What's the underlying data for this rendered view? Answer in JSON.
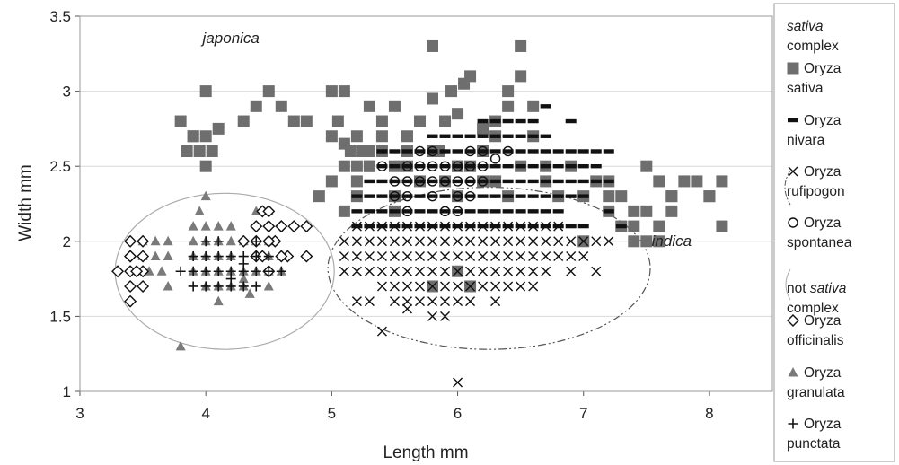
{
  "chart_data": {
    "type": "scatter",
    "xlabel": "Length mm",
    "ylabel": "Width mm",
    "xlim": [
      3,
      8.5
    ],
    "ylim": [
      1,
      3.5
    ],
    "x_ticks": [
      "3",
      "4",
      "5",
      "6",
      "7",
      "8"
    ],
    "y_ticks": [
      "1",
      "1.5",
      "2",
      "2.5",
      "3",
      "3.5"
    ],
    "grid": "horizontal",
    "legend": "right",
    "annotations": [
      {
        "text": "japonica",
        "x": 4.2,
        "y": 3.32
      },
      {
        "text": "indica",
        "x": 7.7,
        "y": 1.97
      }
    ],
    "legend_groups": [
      {
        "title_italic": "sativa",
        "title_rest": "complex",
        "ellipse_style": "dash-dot"
      },
      {
        "title_pre": "not ",
        "title_italic": "sativa",
        "title_rest": "complex",
        "ellipse_style": "solid"
      }
    ],
    "ellipses": [
      {
        "group": "sativa complex",
        "cx": 6.25,
        "cy": 1.82,
        "rx": 1.28,
        "ry": 0.54,
        "style": "dash-dot"
      },
      {
        "group": "not sativa complex",
        "cx": 4.15,
        "cy": 1.8,
        "rx": 0.87,
        "ry": 0.52,
        "style": "solid"
      }
    ],
    "series": [
      {
        "name": "Oryza sativa",
        "marker": "square",
        "color": "#6e6e6e",
        "x": [
          3.8,
          3.85,
          3.9,
          3.95,
          4.0,
          4.0,
          4.05,
          3.9,
          4.0,
          4.1,
          4.3,
          4.4,
          4.5,
          4.6,
          4.7,
          4.8,
          5.0,
          5.0,
          5.05,
          5.1,
          5.15,
          5.2,
          5.25,
          5.3,
          5.1,
          5.2,
          5.3,
          5.4,
          5.5,
          5.5,
          5.6,
          5.7,
          5.8,
          5.8,
          5.85,
          5.9,
          5.95,
          6.0,
          6.0,
          6.05,
          6.1,
          6.2,
          6.3,
          6.4,
          6.5,
          6.5,
          6.6,
          6.6,
          6.7,
          5.9,
          6.0,
          6.1,
          6.2,
          6.3,
          6.4,
          5.1,
          5.2,
          5.3,
          5.4,
          5.5,
          5.6,
          5.7,
          5.8,
          6.0,
          6.2,
          6.5,
          6.7,
          6.8,
          6.9,
          7.0,
          7.1,
          7.2,
          7.2,
          7.3,
          7.4,
          7.5,
          7.6,
          7.7,
          7.8,
          7.9,
          8.0,
          8.1,
          7.5,
          7.6,
          7.7,
          7.3,
          7.4,
          7.5,
          7.6,
          7.7,
          7.0,
          7.2,
          7.4,
          8.0,
          8.1,
          6.0,
          6.1,
          5.8,
          5.0,
          5.1,
          5.6,
          4.9,
          5.3,
          5.4,
          6.3,
          6.4,
          5.5,
          5.2
        ],
        "y": [
          2.8,
          2.6,
          2.7,
          2.6,
          2.5,
          3.0,
          2.6,
          2.7,
          2.7,
          2.75,
          2.8,
          2.9,
          3.0,
          2.9,
          2.8,
          2.8,
          2.7,
          3.0,
          2.8,
          2.65,
          2.6,
          2.5,
          2.6,
          2.9,
          3.0,
          2.7,
          2.5,
          2.8,
          2.9,
          2.5,
          2.6,
          2.8,
          3.3,
          2.95,
          2.6,
          2.8,
          3.0,
          2.85,
          2.5,
          3.05,
          3.1,
          2.75,
          2.7,
          3.0,
          3.3,
          3.1,
          2.9,
          2.7,
          2.5,
          2.4,
          2.3,
          2.5,
          2.6,
          2.4,
          2.3,
          2.5,
          2.4,
          2.5,
          2.6,
          2.3,
          2.5,
          2.4,
          2.6,
          2.5,
          2.4,
          2.5,
          2.4,
          2.3,
          2.5,
          2.3,
          2.4,
          2.2,
          2.3,
          2.1,
          2.0,
          2.0,
          2.0,
          2.3,
          2.4,
          2.4,
          2.3,
          2.4,
          2.5,
          2.4,
          2.3,
          2.3,
          2.2,
          2.2,
          2.1,
          2.2,
          2.0,
          2.4,
          2.1,
          2.3,
          2.1,
          1.8,
          1.7,
          1.7,
          2.4,
          2.2,
          2.7,
          2.3,
          2.6,
          2.7,
          2.8,
          2.9,
          2.2,
          2.3
        ]
      },
      {
        "name": "Oryza nivara",
        "marker": "dash",
        "color": "#111111",
        "x": [
          5.4,
          5.5,
          5.6,
          5.7,
          5.8,
          5.9,
          6.0,
          6.1,
          6.2,
          6.3,
          6.4,
          6.5,
          6.6,
          6.7,
          6.8,
          6.9,
          7.0,
          7.1,
          7.2,
          5.4,
          5.5,
          5.6,
          5.7,
          5.8,
          5.9,
          6.0,
          6.1,
          6.2,
          6.3,
          6.4,
          6.5,
          6.6,
          6.7,
          6.8,
          6.9,
          7.0,
          7.1,
          5.3,
          5.4,
          5.5,
          5.6,
          5.7,
          5.8,
          5.9,
          6.0,
          6.1,
          6.2,
          6.3,
          6.4,
          6.5,
          6.6,
          6.7,
          6.8,
          6.9,
          7.0,
          7.1,
          7.2,
          5.2,
          5.3,
          5.4,
          5.5,
          5.6,
          5.7,
          5.8,
          5.9,
          6.0,
          6.1,
          6.2,
          6.3,
          6.4,
          6.5,
          6.6,
          6.7,
          6.8,
          6.9,
          7.0,
          5.2,
          5.3,
          5.4,
          5.5,
          5.6,
          5.7,
          5.8,
          5.9,
          6.0,
          6.1,
          6.2,
          6.3,
          6.4,
          6.5,
          6.6,
          6.7,
          6.8,
          5.2,
          5.3,
          5.4,
          5.5,
          5.6,
          5.7,
          5.8,
          5.9,
          6.0,
          6.1,
          6.2,
          6.3,
          6.4,
          6.5,
          6.6,
          6.7,
          6.8,
          6.9,
          7.0,
          5.8,
          5.9,
          6.0,
          6.1,
          6.2,
          6.3,
          6.4,
          6.5,
          6.6,
          6.7,
          6.2,
          6.3,
          6.4,
          6.5,
          6.6,
          6.9,
          7.2,
          7.3,
          6.7
        ],
        "y": [
          2.6,
          2.6,
          2.6,
          2.6,
          2.6,
          2.6,
          2.6,
          2.6,
          2.6,
          2.6,
          2.6,
          2.6,
          2.6,
          2.6,
          2.6,
          2.6,
          2.6,
          2.6,
          2.6,
          2.5,
          2.5,
          2.5,
          2.5,
          2.5,
          2.5,
          2.5,
          2.5,
          2.5,
          2.5,
          2.5,
          2.5,
          2.5,
          2.5,
          2.5,
          2.5,
          2.5,
          2.5,
          2.4,
          2.4,
          2.4,
          2.4,
          2.4,
          2.4,
          2.4,
          2.4,
          2.4,
          2.4,
          2.4,
          2.4,
          2.4,
          2.4,
          2.4,
          2.4,
          2.4,
          2.4,
          2.4,
          2.4,
          2.3,
          2.3,
          2.3,
          2.3,
          2.3,
          2.3,
          2.3,
          2.3,
          2.3,
          2.3,
          2.3,
          2.3,
          2.3,
          2.3,
          2.3,
          2.3,
          2.3,
          2.3,
          2.3,
          2.2,
          2.2,
          2.2,
          2.2,
          2.2,
          2.2,
          2.2,
          2.2,
          2.2,
          2.2,
          2.2,
          2.2,
          2.2,
          2.2,
          2.2,
          2.2,
          2.2,
          2.1,
          2.1,
          2.1,
          2.1,
          2.1,
          2.1,
          2.1,
          2.1,
          2.1,
          2.1,
          2.1,
          2.1,
          2.1,
          2.1,
          2.1,
          2.1,
          2.1,
          2.1,
          2.1,
          2.7,
          2.7,
          2.7,
          2.7,
          2.7,
          2.7,
          2.7,
          2.7,
          2.7,
          2.7,
          2.8,
          2.8,
          2.8,
          2.8,
          2.8,
          2.8,
          2.2,
          2.1,
          2.9
        ]
      },
      {
        "name": "Oryza rufipogon",
        "marker": "x",
        "color": "#111111",
        "x": [
          5.2,
          5.3,
          5.4,
          5.5,
          5.6,
          5.7,
          5.8,
          5.9,
          6.0,
          6.1,
          6.2,
          6.3,
          6.4,
          6.5,
          6.6,
          6.7,
          6.8,
          5.1,
          5.2,
          5.3,
          5.4,
          5.5,
          5.6,
          5.7,
          5.8,
          5.9,
          6.0,
          6.1,
          6.2,
          6.3,
          6.4,
          6.5,
          6.6,
          6.7,
          6.8,
          6.9,
          7.0,
          7.1,
          7.2,
          5.1,
          5.2,
          5.3,
          5.4,
          5.5,
          5.6,
          5.7,
          5.8,
          5.9,
          6.0,
          6.1,
          6.2,
          6.3,
          6.4,
          6.5,
          6.6,
          6.7,
          6.8,
          6.9,
          7.0,
          5.1,
          5.2,
          5.3,
          5.4,
          5.5,
          5.6,
          5.7,
          5.8,
          5.9,
          6.0,
          6.1,
          6.2,
          6.3,
          6.4,
          6.5,
          6.6,
          6.7,
          6.9,
          7.1,
          5.4,
          5.5,
          5.6,
          5.7,
          5.8,
          5.9,
          6.0,
          6.1,
          6.2,
          6.3,
          6.4,
          6.5,
          6.6,
          5.2,
          5.3,
          5.5,
          5.6,
          5.7,
          5.8,
          5.9,
          6.0,
          6.1,
          6.3,
          5.6,
          5.8,
          5.9,
          5.4,
          6.0
        ],
        "y": [
          2.1,
          2.1,
          2.1,
          2.1,
          2.1,
          2.1,
          2.1,
          2.1,
          2.1,
          2.1,
          2.1,
          2.1,
          2.1,
          2.1,
          2.1,
          2.1,
          2.1,
          2.0,
          2.0,
          2.0,
          2.0,
          2.0,
          2.0,
          2.0,
          2.0,
          2.0,
          2.0,
          2.0,
          2.0,
          2.0,
          2.0,
          2.0,
          2.0,
          2.0,
          2.0,
          2.0,
          2.0,
          2.0,
          2.0,
          1.9,
          1.9,
          1.9,
          1.9,
          1.9,
          1.9,
          1.9,
          1.9,
          1.9,
          1.9,
          1.9,
          1.9,
          1.9,
          1.9,
          1.9,
          1.9,
          1.9,
          1.9,
          1.9,
          1.9,
          1.8,
          1.8,
          1.8,
          1.8,
          1.8,
          1.8,
          1.8,
          1.8,
          1.8,
          1.8,
          1.8,
          1.8,
          1.8,
          1.8,
          1.8,
          1.8,
          1.8,
          1.8,
          1.8,
          1.7,
          1.7,
          1.7,
          1.7,
          1.7,
          1.7,
          1.7,
          1.7,
          1.7,
          1.7,
          1.7,
          1.7,
          1.7,
          1.6,
          1.6,
          1.6,
          1.6,
          1.6,
          1.6,
          1.6,
          1.6,
          1.6,
          1.6,
          1.55,
          1.5,
          1.5,
          1.4,
          1.06
        ]
      },
      {
        "name": "Oryza spontanea",
        "marker": "circle",
        "color": "#111111",
        "x": [
          5.4,
          5.6,
          5.7,
          5.8,
          5.9,
          6.0,
          6.1,
          6.2,
          6.3,
          6.4,
          5.5,
          5.6,
          5.7,
          5.8,
          5.9,
          6.0,
          6.1,
          6.2,
          5.5,
          5.6,
          5.8,
          6.0,
          6.1,
          5.6,
          5.9,
          6.0,
          5.7,
          5.8,
          6.1,
          6.2
        ],
        "y": [
          2.5,
          2.5,
          2.5,
          2.5,
          2.5,
          2.5,
          2.5,
          2.5,
          2.55,
          2.6,
          2.4,
          2.4,
          2.4,
          2.4,
          2.4,
          2.4,
          2.4,
          2.4,
          2.3,
          2.3,
          2.3,
          2.3,
          2.3,
          2.2,
          2.2,
          2.2,
          2.6,
          2.6,
          2.6,
          2.6
        ]
      },
      {
        "name": "Oryza officinalis",
        "marker": "diamond",
        "color": "#111111",
        "x": [
          3.3,
          3.4,
          3.4,
          3.5,
          3.5,
          3.4,
          3.4,
          3.5,
          3.4,
          3.5,
          3.45,
          3.4,
          4.4,
          4.5,
          4.55,
          4.6,
          4.4,
          4.5,
          4.3,
          4.4,
          4.45,
          4.5,
          4.6,
          4.7,
          4.8,
          4.45,
          4.5,
          4.65,
          4.6,
          4.8
        ],
        "y": [
          1.8,
          2.0,
          1.9,
          1.9,
          1.8,
          1.8,
          1.7,
          1.7,
          1.6,
          2.0,
          1.8,
          1.9,
          2.1,
          2.1,
          2.0,
          2.1,
          2.0,
          2.0,
          2.0,
          1.9,
          2.2,
          2.2,
          2.1,
          2.1,
          2.1,
          1.9,
          1.8,
          1.9,
          1.9,
          1.9
        ]
      },
      {
        "name": "Oryza granulata",
        "marker": "triangle",
        "color": "#7a7a7a",
        "x": [
          3.5,
          3.6,
          3.7,
          3.5,
          3.6,
          3.7,
          3.55,
          3.65,
          3.7,
          3.9,
          4.0,
          4.1,
          4.2,
          4.3,
          4.4,
          4.5,
          3.9,
          4.0,
          4.1,
          4.2,
          3.9,
          4.0,
          4.1,
          4.2,
          4.3,
          4.4,
          4.0,
          4.1,
          3.9,
          4.0,
          4.1,
          4.2,
          4.4,
          4.5,
          4.5,
          4.3,
          4.0,
          3.95,
          4.1,
          4.2,
          4.3,
          4.35,
          4.5,
          4.6,
          4.5,
          4.6,
          3.8
        ],
        "y": [
          2.0,
          2.0,
          2.0,
          1.9,
          1.9,
          1.9,
          1.8,
          1.8,
          1.7,
          2.0,
          2.0,
          2.0,
          2.0,
          2.0,
          2.0,
          2.0,
          1.9,
          1.9,
          1.9,
          1.9,
          1.8,
          1.8,
          1.8,
          1.8,
          1.8,
          1.8,
          1.7,
          1.7,
          2.1,
          2.1,
          2.1,
          2.1,
          2.2,
          2.2,
          1.9,
          1.75,
          2.3,
          2.2,
          1.6,
          1.7,
          1.7,
          1.65,
          1.7,
          1.8,
          1.8,
          1.9,
          1.3
        ]
      },
      {
        "name": "Oryza punctata",
        "marker": "plus",
        "color": "#111111",
        "x": [
          3.9,
          4.0,
          4.1,
          4.2,
          4.3,
          4.4,
          4.5,
          4.6,
          3.8,
          3.9,
          4.0,
          4.1,
          4.2,
          4.3,
          4.4,
          4.5,
          3.9,
          4.0,
          4.1,
          4.2,
          4.3,
          4.4,
          4.0,
          4.1,
          4.4,
          4.2,
          4.3
        ],
        "y": [
          1.8,
          1.8,
          1.8,
          1.8,
          1.8,
          1.8,
          1.8,
          1.8,
          1.8,
          1.9,
          1.9,
          1.9,
          1.9,
          1.9,
          1.9,
          1.9,
          1.7,
          1.7,
          1.7,
          1.7,
          1.7,
          1.7,
          2.0,
          2.0,
          2.0,
          1.75,
          1.85
        ]
      }
    ]
  }
}
